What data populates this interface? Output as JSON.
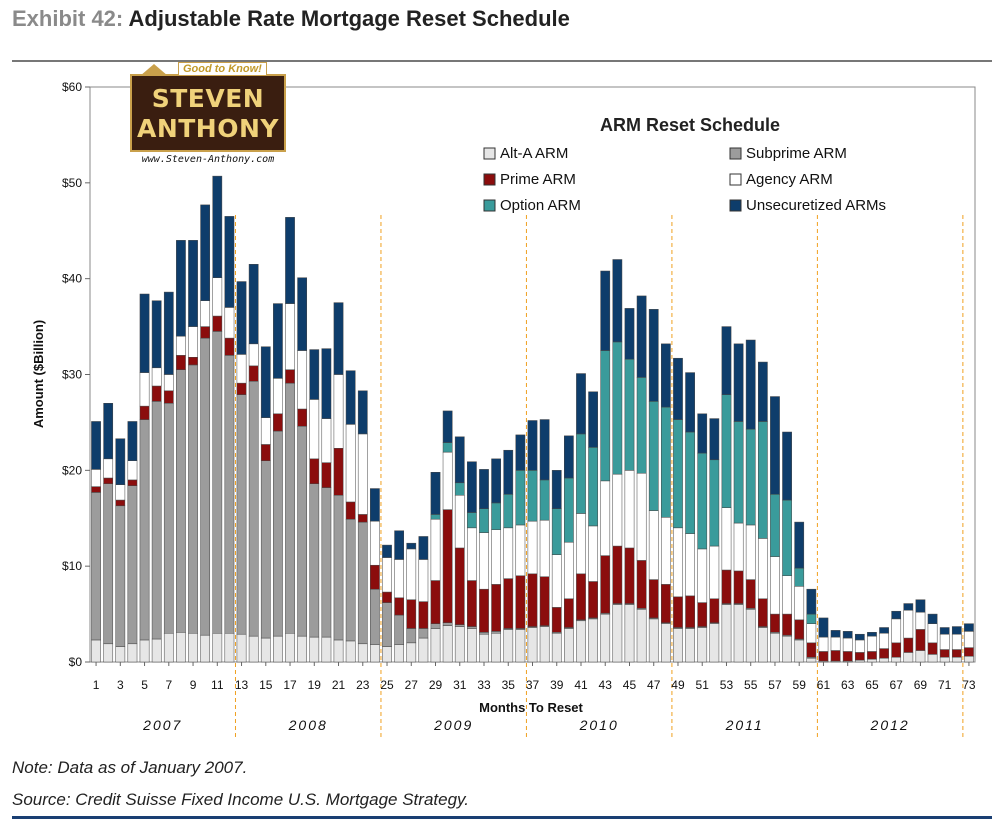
{
  "exhibit": {
    "label": "Exhibit 42:",
    "title": "Adjustable Rate Mortgage Reset Schedule"
  },
  "note": "Note: Data as of January 2007.",
  "source": "Source: Credit Suisse Fixed Income U.S. Mortgage Strategy.",
  "logo": {
    "tagline": "Good to Know!",
    "name_line1": "STEVEN",
    "name_line2": "ANTHONY",
    "url": "www.Steven-Anthony.com"
  },
  "colors": {
    "altA": "#e6e6e6",
    "subprime": "#9c9c9c",
    "prime": "#8b0d0d",
    "agency": "#ffffff",
    "option": "#3a9b9b",
    "unsecuritized": "#0e3d6b",
    "year_divider": "#f0a020"
  },
  "chart_data": {
    "type": "bar",
    "stacked": true,
    "title": "ARM Reset Schedule",
    "xlabel": "Months To Reset",
    "ylabel": "Amount ($Billion)",
    "ylim": [
      0,
      60
    ],
    "yticks": [
      "$0",
      "$10",
      "$20",
      "$30",
      "$40",
      "$50",
      "$60"
    ],
    "xticks": [
      "1",
      "3",
      "5",
      "7",
      "9",
      "11",
      "13",
      "15",
      "17",
      "19",
      "21",
      "23",
      "25",
      "27",
      "29",
      "31",
      "33",
      "35",
      "37",
      "39",
      "41",
      "43",
      "45",
      "47",
      "49",
      "51",
      "53",
      "55",
      "57",
      "59",
      "61",
      "63",
      "65",
      "67",
      "69",
      "71",
      "73"
    ],
    "years": [
      "2007",
      "2008",
      "2009",
      "2010",
      "2011",
      "2012"
    ],
    "legend_position": "top-right",
    "legend": [
      {
        "key": "altA",
        "label": "Alt-A ARM"
      },
      {
        "key": "subprime",
        "label": "Subprime ARM"
      },
      {
        "key": "prime",
        "label": "Prime ARM"
      },
      {
        "key": "agency",
        "label": "Agency ARM"
      },
      {
        "key": "option",
        "label": "Option ARM"
      },
      {
        "key": "unsecuritized",
        "label": "Unsecuretized ARMs"
      }
    ],
    "categories": [
      "1",
      "2",
      "3",
      "4",
      "5",
      "6",
      "7",
      "8",
      "9",
      "10",
      "11",
      "12",
      "13",
      "14",
      "15",
      "16",
      "17",
      "18",
      "19",
      "20",
      "21",
      "22",
      "23",
      "24",
      "25",
      "26",
      "27",
      "28",
      "29",
      "30",
      "31",
      "32",
      "33",
      "34",
      "35",
      "36",
      "37",
      "38",
      "39",
      "40",
      "41",
      "42",
      "43",
      "44",
      "45",
      "46",
      "47",
      "48",
      "49",
      "50",
      "51",
      "52",
      "53",
      "54",
      "55",
      "56",
      "57",
      "58",
      "59",
      "60",
      "61",
      "62",
      "63",
      "64",
      "65",
      "66",
      "67",
      "68",
      "69",
      "70",
      "71",
      "72",
      "73"
    ],
    "series": [
      {
        "key": "altA",
        "name": "Alt-A ARM",
        "values": [
          2.3,
          1.9,
          1.6,
          1.9,
          2.3,
          2.4,
          3,
          3.1,
          3,
          2.8,
          3,
          3,
          2.9,
          2.7,
          2.5,
          2.7,
          3,
          2.7,
          2.6,
          2.6,
          2.3,
          2.2,
          1.9,
          1.8,
          1.6,
          1.8,
          2,
          2.5,
          3.5,
          3.8,
          3.7,
          3.5,
          2.9,
          3,
          3.4,
          3.4,
          3.6,
          3.7,
          3,
          3.5,
          4.3,
          4.5,
          5,
          6,
          6,
          5.5,
          4.5,
          4,
          3.5,
          3.5,
          3.6,
          4,
          6,
          6,
          5.5,
          3.6,
          3,
          2.7,
          2.3,
          0.4,
          0.1,
          0.1,
          0.1,
          0.2,
          0.3,
          0.4,
          0.5,
          1,
          1.2,
          0.8,
          0.5,
          0.5,
          0.6
        ]
      },
      {
        "key": "subprime",
        "name": "Subprime ARM",
        "values": [
          15.4,
          16.7,
          14.7,
          16.5,
          23,
          24.8,
          24,
          27.4,
          28,
          31,
          31.5,
          29,
          25,
          26.6,
          18.5,
          21.4,
          26.1,
          21.9,
          16,
          15.6,
          15.1,
          12.7,
          12.7,
          5.8,
          4.6,
          3.1,
          1.5,
          1,
          0.5,
          0.3,
          0.2,
          0.2,
          0.2,
          0.2,
          0.1,
          0.1,
          0.1,
          0.1,
          0.1,
          0.1,
          0.1,
          0.1,
          0.1,
          0.1,
          0.1,
          0.1,
          0.1,
          0.1,
          0.1,
          0.1,
          0.1,
          0.1,
          0.1,
          0.1,
          0.1,
          0.1,
          0.1,
          0.1,
          0.1,
          0.1,
          0,
          0,
          0,
          0,
          0,
          0,
          0,
          0,
          0,
          0,
          0,
          0,
          0
        ]
      },
      {
        "key": "prime",
        "name": "Prime ARM",
        "values": [
          0.6,
          0.6,
          0.6,
          0.6,
          1.4,
          1.6,
          1.3,
          1.5,
          0.8,
          1.2,
          1.6,
          1.8,
          1.2,
          1.6,
          1.7,
          1.8,
          1.4,
          1.8,
          2.6,
          2.6,
          4.9,
          1.8,
          0.8,
          2.5,
          1.1,
          1.8,
          3,
          2.8,
          4.5,
          11.8,
          8,
          4.8,
          4.5,
          4.9,
          5.2,
          5.5,
          5.5,
          5.1,
          2.6,
          3,
          4.8,
          3.8,
          6,
          6,
          5.8,
          5,
          4,
          4,
          3.2,
          3.3,
          2.5,
          2.5,
          3.5,
          3.4,
          3,
          2.9,
          1.9,
          2.2,
          2,
          1.5,
          1,
          1.1,
          1,
          0.8,
          0.8,
          1,
          1.5,
          1.5,
          2.2,
          1.2,
          0.8,
          0.8,
          0.9
        ]
      },
      {
        "key": "agency",
        "name": "Agency ARM",
        "values": [
          1.8,
          2,
          1.6,
          2,
          3.5,
          1.9,
          1.7,
          2,
          3.2,
          2.7,
          4,
          3.2,
          3,
          2.3,
          2.8,
          3.7,
          6.9,
          6.1,
          6.2,
          4.6,
          7.7,
          8.1,
          8.4,
          4.6,
          3.6,
          4,
          5.3,
          4.4,
          6.4,
          6,
          5.5,
          5.5,
          5.9,
          5.7,
          5.3,
          5.3,
          5.5,
          5.9,
          5.5,
          5.9,
          6.3,
          5.8,
          7.8,
          7.5,
          8.1,
          9.1,
          7.2,
          7,
          7.2,
          6.5,
          5.6,
          5.5,
          6.5,
          5,
          5.7,
          6.3,
          6,
          4,
          3.5,
          2,
          1.5,
          1.4,
          1.4,
          1.3,
          1.6,
          1.6,
          2.5,
          2.9,
          1.8,
          2,
          1.6,
          1.6,
          1.7
        ]
      },
      {
        "key": "option",
        "name": "Option ARM",
        "values": [
          0,
          0,
          0,
          0,
          0,
          0,
          0,
          0,
          0,
          0,
          0,
          0,
          0,
          0,
          0,
          0,
          0,
          0,
          0,
          0,
          0,
          0,
          0,
          0,
          0,
          0,
          0,
          0,
          0.5,
          1,
          1.3,
          1.6,
          2.5,
          2.8,
          3.5,
          5.7,
          5.3,
          4.2,
          4.8,
          6.7,
          8.3,
          8.2,
          13.6,
          13.8,
          11.6,
          10,
          11.4,
          11.5,
          11.3,
          10.6,
          10,
          9,
          11.8,
          10.6,
          10,
          12.2,
          6.5,
          7.9,
          1.9,
          1,
          0,
          0,
          0,
          0,
          0,
          0,
          0,
          0,
          0,
          0,
          0,
          0,
          0
        ]
      },
      {
        "key": "unsecuritized",
        "name": "Unsecuretized ARMs",
        "values": [
          5,
          5.8,
          4.8,
          4.1,
          8.2,
          7,
          8.6,
          10,
          9,
          10,
          10.6,
          9.5,
          7.6,
          8.3,
          7.4,
          7.8,
          9,
          7.6,
          5.2,
          7.3,
          7.5,
          5.6,
          4.5,
          3.4,
          1.3,
          3,
          0.6,
          2.4,
          4.4,
          3.3,
          4.8,
          5.3,
          4.1,
          4.6,
          4.6,
          3.7,
          5.2,
          6.3,
          4,
          4.4,
          6.3,
          5.8,
          8.3,
          8.6,
          5.3,
          8.5,
          9.6,
          6.6,
          6.4,
          6.2,
          4.1,
          4.3,
          7.1,
          8.1,
          9.3,
          6.2,
          10.2,
          7.1,
          4.8,
          2.6,
          2,
          0.7,
          0.7,
          0.6,
          0.4,
          0.6,
          0.8,
          0.7,
          1.3,
          1,
          0.7,
          0.8,
          0.8
        ]
      }
    ]
  }
}
